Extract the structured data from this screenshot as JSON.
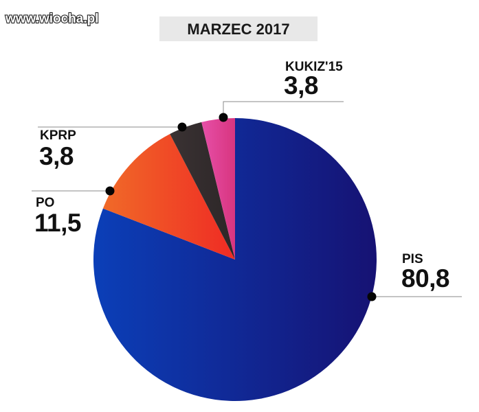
{
  "watermark": "www.wiocha.pl",
  "chart_data": {
    "type": "pie",
    "title": "MARZEC 2017",
    "slices": [
      {
        "label": "PIS",
        "value_label": "80,8",
        "value": 80.8,
        "color": "#161273",
        "color_light": "#0b3fb8"
      },
      {
        "label": "PO",
        "value_label": "11,5",
        "value": 11.5,
        "color": "#ef2b24",
        "color_light": "#f06a28"
      },
      {
        "label": "KPRP",
        "value_label": "3,8",
        "value": 3.8,
        "color": "#2c2627",
        "color_light": "#3a3233"
      },
      {
        "label": "KUKIZ'15",
        "value_label": "3,8",
        "value": 3.8,
        "color": "#d8357f",
        "color_light": "#e64fa8"
      }
    ],
    "start": "12 o'clock",
    "direction": "clockwise",
    "legend": "none",
    "labels": "callout lines with dots"
  }
}
